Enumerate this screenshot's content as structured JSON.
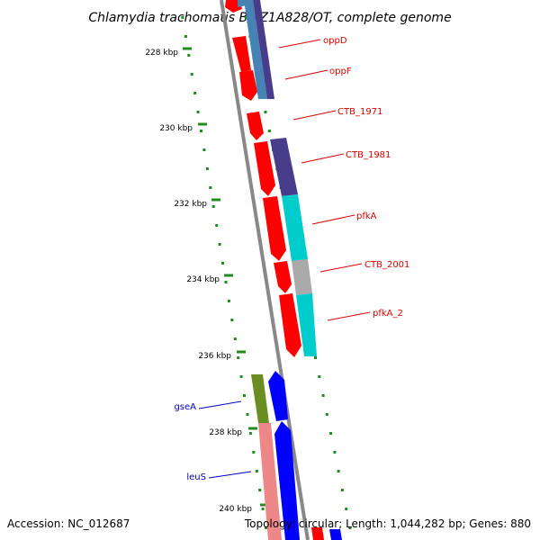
{
  "title": "Chlamydia trachomatis B/TZ1A828/OT, complete genome",
  "footer": {
    "accession": "Accession: NC_012687",
    "stats": "Topology: circular; Length: 1,044,282 bp; Genes: 880"
  },
  "ticks": [
    {
      "label": "228 kbp",
      "kbp": 228
    },
    {
      "label": "230 kbp",
      "kbp": 230
    },
    {
      "label": "232 kbp",
      "kbp": 232
    },
    {
      "label": "234 kbp",
      "kbp": 234
    },
    {
      "label": "236 kbp",
      "kbp": 236
    },
    {
      "label": "238 kbp",
      "kbp": 238
    },
    {
      "label": "240 kbp",
      "kbp": 240
    }
  ],
  "genes": [
    {
      "name": "oppD",
      "strand": "forward",
      "color": "#dd0000"
    },
    {
      "name": "oppF",
      "strand": "forward",
      "color": "#dd0000"
    },
    {
      "name": "CTB_1971",
      "strand": "forward",
      "color": "#dd0000"
    },
    {
      "name": "CTB_1981",
      "strand": "forward",
      "color": "#dd0000"
    },
    {
      "name": "pfkA",
      "strand": "forward",
      "color": "#dd0000"
    },
    {
      "name": "CTB_2001",
      "strand": "forward",
      "color": "#dd0000"
    },
    {
      "name": "pfkA_2",
      "strand": "forward",
      "color": "#dd0000"
    },
    {
      "name": "gseA",
      "strand": "reverse",
      "color": "#0000bb"
    },
    {
      "name": "leuS",
      "strand": "reverse",
      "color": "#0000bb"
    }
  ],
  "colors": {
    "forward_cds": "#ff0000",
    "reverse_cds": "#0000ff",
    "backbone": "#888888",
    "ticks": "#228b22",
    "cog_purple": "#483d8b",
    "cog_cyan": "#00cccc",
    "cog_gray": "#aaaaaa",
    "cog_olive": "#6b8e23",
    "cog_pink": "#ee8888",
    "cog_steel": "#4682b4"
  }
}
